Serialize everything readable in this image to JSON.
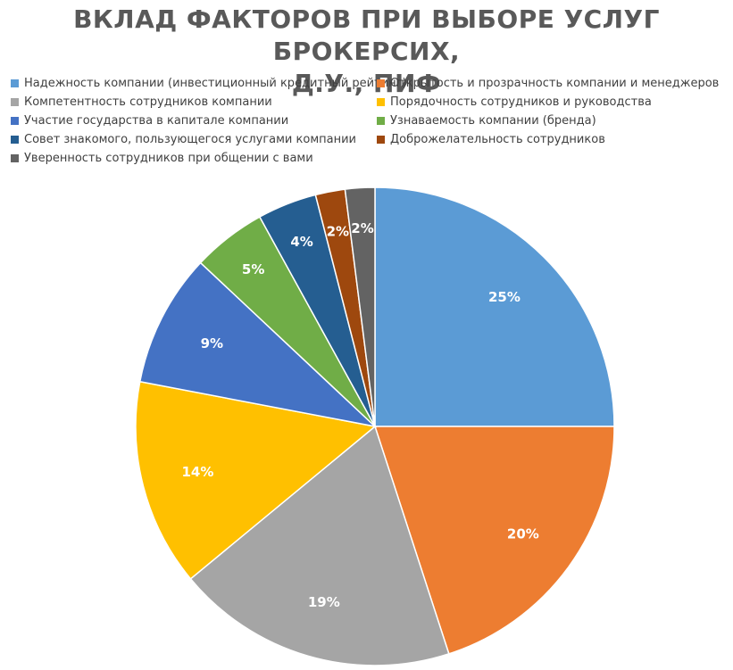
{
  "chart_data": {
    "type": "pie",
    "title_lines": [
      "ВКЛАД ФАКТОРОВ ПРИ ВЫБОРЕ УСЛУГ БРОКЕРСИХ,",
      "Д.У., ПИФ"
    ],
    "legend_position": "top",
    "start_angle_deg": 0,
    "direction": "clockwise",
    "slices": [
      {
        "name": "Надежность компании (инвестиционный кредитный рейтинг)",
        "value": 25,
        "label": "25%",
        "color": "#5B9BD5"
      },
      {
        "name": "Открытость и прозрачность компании и менеджеров",
        "value": 20,
        "label": "20%",
        "color": "#ED7D31"
      },
      {
        "name": "Компетентность сотрудников компании",
        "value": 19,
        "label": "19%",
        "color": "#A5A5A5"
      },
      {
        "name": "Порядочность сотрудников и руководства",
        "value": 14,
        "label": "14%",
        "color": "#FFC000"
      },
      {
        "name": "Участие государства в капитале компании",
        "value": 9,
        "label": "9%",
        "color": "#4472C4"
      },
      {
        "name": "Узнаваемость компании (бренда)",
        "value": 5,
        "label": "5%",
        "color": "#70AD47"
      },
      {
        "name": "Совет знакомого, пользующегося услугами компании",
        "value": 4,
        "label": "4%",
        "color": "#255E91"
      },
      {
        "name": "Доброжелательность сотрудников",
        "value": 2,
        "label": "2%",
        "color": "#9E480E"
      },
      {
        "name": "Уверенность сотрудников при общении с вами",
        "value": 2,
        "label": "2%",
        "color": "#636363"
      }
    ]
  }
}
